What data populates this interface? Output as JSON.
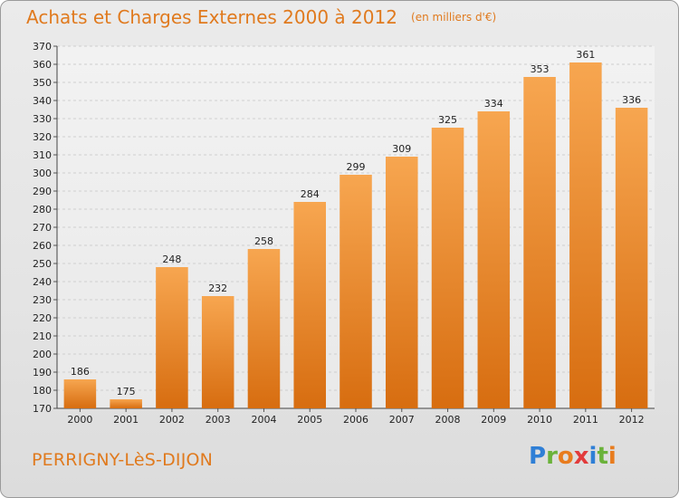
{
  "title": "Achats et Charges Externes 2000 à 2012",
  "unit_note": "(en milliers d'€)",
  "commune": "PERRIGNY-LèS-DIJON",
  "logo": {
    "letters": [
      "P",
      "r",
      "o",
      "x",
      "i",
      "t",
      "i"
    ],
    "colors": [
      "#2f7fd6",
      "#6ab23a",
      "#e87c1e",
      "#e23b3b",
      "#2f7fd6",
      "#6ab23a",
      "#e87c1e"
    ]
  },
  "colors": {
    "bar_top": "#f7a650",
    "bar_bottom": "#d76d10",
    "title": "#e07a1e"
  },
  "chart_data": {
    "type": "bar",
    "title": "Achats et Charges Externes 2000 à 2012",
    "categories": [
      "2000",
      "2001",
      "2002",
      "2003",
      "2004",
      "2005",
      "2006",
      "2007",
      "2008",
      "2009",
      "2010",
      "2011",
      "2012"
    ],
    "values": [
      186,
      175,
      248,
      232,
      258,
      284,
      299,
      309,
      325,
      334,
      353,
      361,
      336
    ],
    "ylim": [
      170,
      370
    ],
    "yticks": [
      170,
      180,
      190,
      200,
      210,
      220,
      230,
      240,
      250,
      260,
      270,
      280,
      290,
      300,
      310,
      320,
      330,
      340,
      350,
      360,
      370
    ],
    "grid": true,
    "xlabel": "",
    "ylabel": ""
  }
}
